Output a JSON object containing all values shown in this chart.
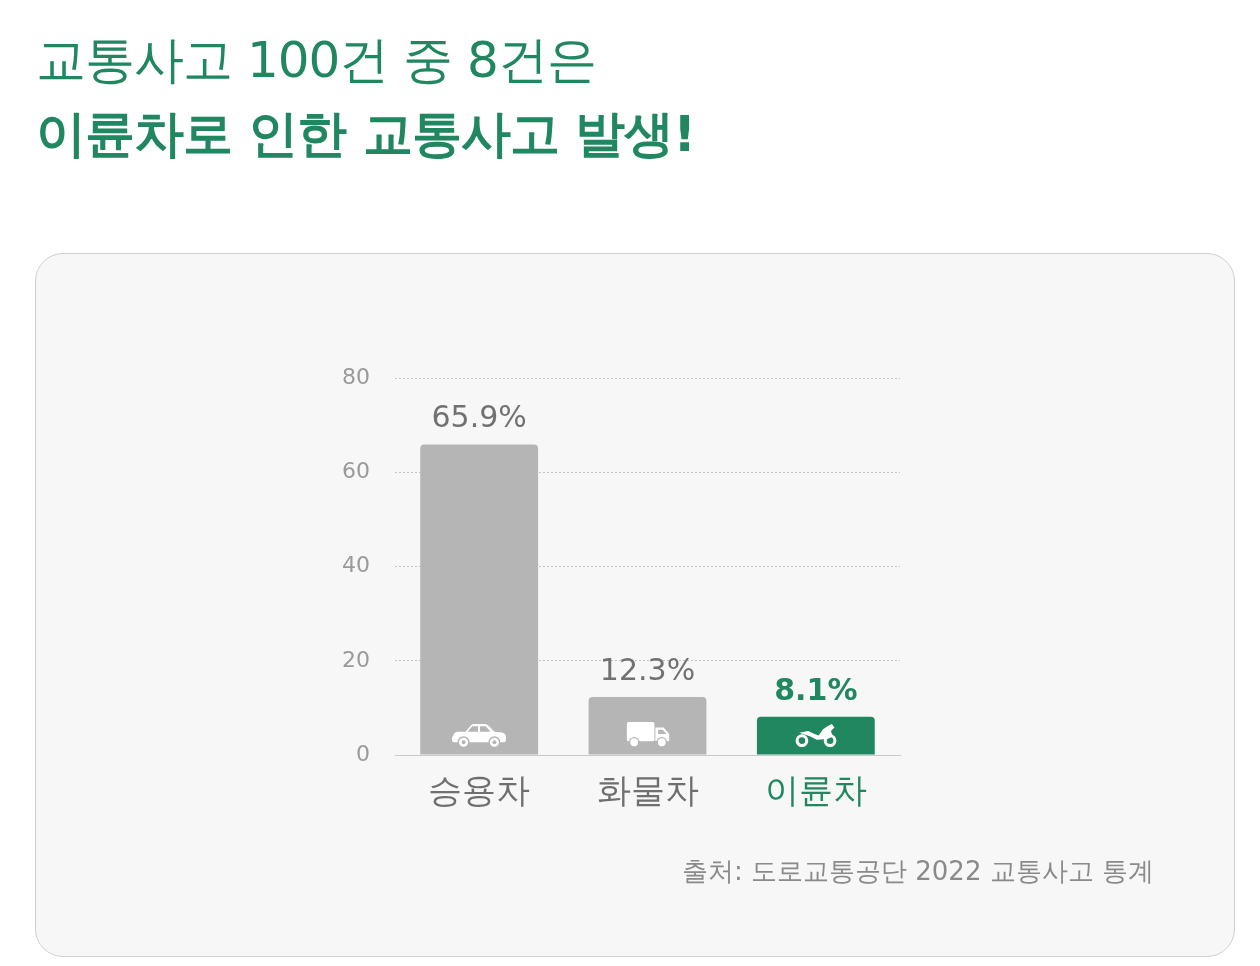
{
  "chart_data": {
    "type": "bar",
    "title": "교통사고 100건 중 8건은",
    "subtitle": "이륜차로 인한 교통사고 발생!",
    "categories": [
      "승용차",
      "화물차",
      "이륜차"
    ],
    "values": [
      65.9,
      12.3,
      8.1
    ],
    "colors": [
      "#b5b5b5",
      "#b5b5b5",
      "#218760"
    ],
    "value_labels": [
      "65.9%",
      "12.3%",
      "8.1%"
    ],
    "ylim": [
      0,
      80
    ],
    "yticks": [
      0,
      20,
      40,
      60,
      80
    ],
    "grid": "y",
    "annotations": [
      "출처: 도로교통공단 2022 교통사고 통계"
    ]
  }
}
